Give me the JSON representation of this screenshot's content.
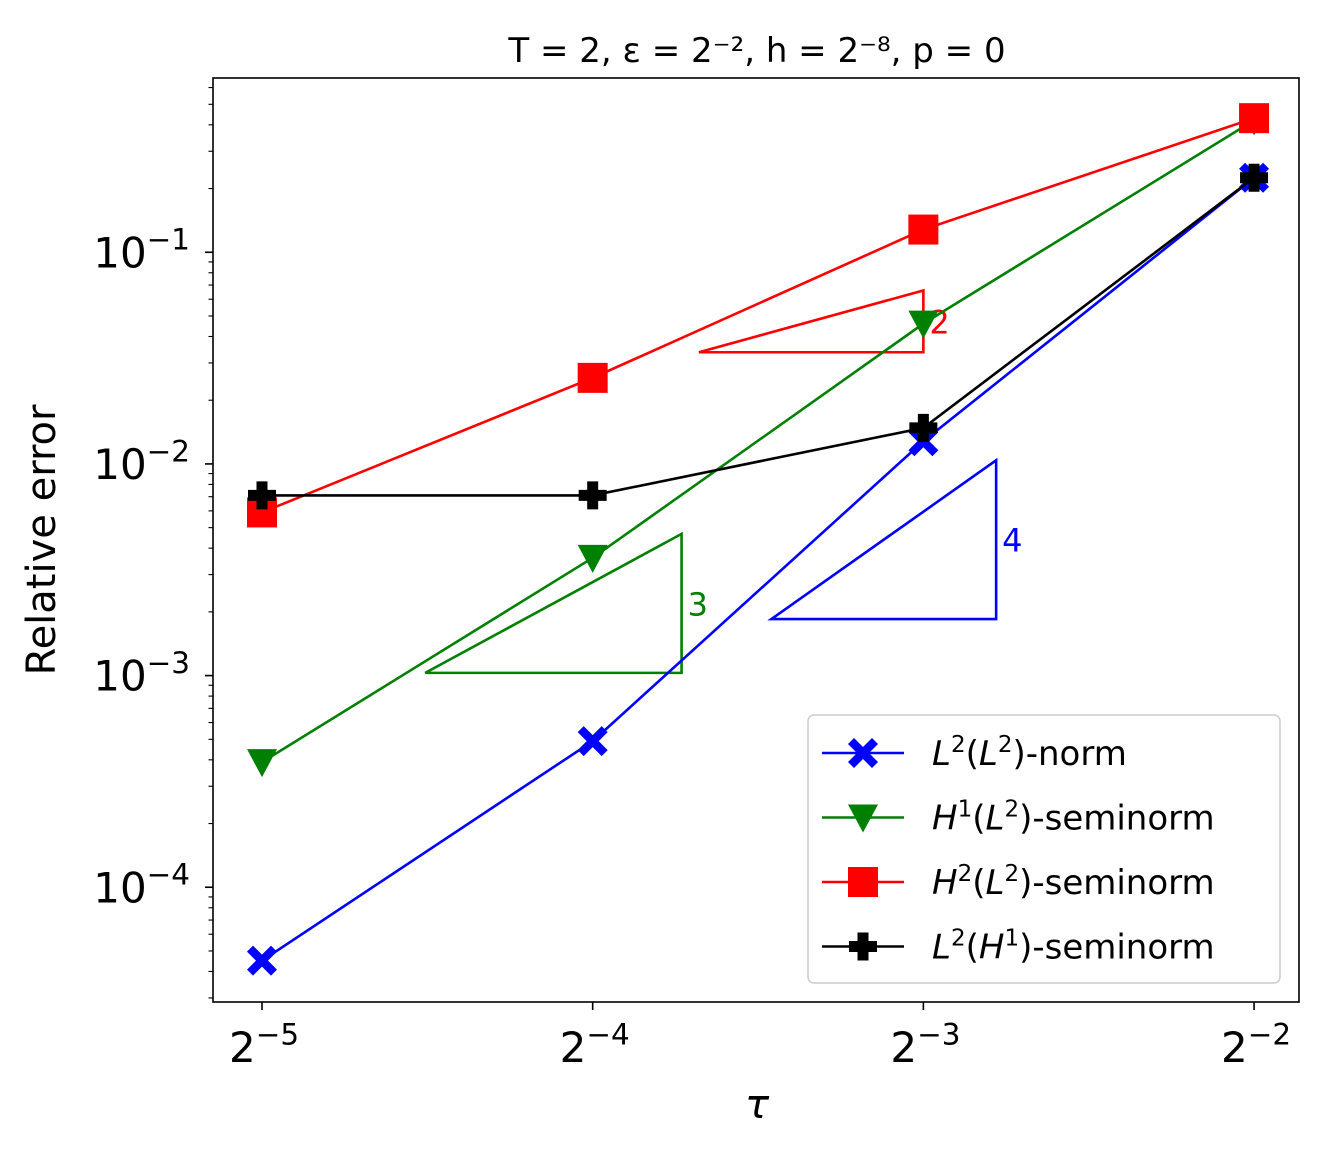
{
  "chart_data": {
    "type": "line",
    "title": "T = 2, ε = 2⁻², h = 2⁻⁸, p = 0",
    "xlabel": "τ",
    "ylabel": "Relative error",
    "x_scale": "log2",
    "y_scale": "log10",
    "x": [
      0.03125,
      0.0625,
      0.125,
      0.25
    ],
    "x_tick_base": "2",
    "x_tick_exponents": [
      "−5",
      "−4",
      "−3",
      "−2"
    ],
    "y_tick_base": "10",
    "y_tick_exponents": [
      "−4",
      "−3",
      "−2",
      "−1"
    ],
    "y_tick_values": [
      0.0001,
      0.001,
      0.01,
      0.1
    ],
    "xlim": [
      0.0282,
      0.2747
    ],
    "ylim": [
      2.87e-05,
      0.6657
    ],
    "grid": false,
    "legend_position": "lower right",
    "series": [
      {
        "name": "L²(L²)-norm",
        "legend_parts": [
          "L",
          "2",
          "(L",
          "2",
          ")-norm"
        ],
        "color": "#0000ff",
        "marker": "X",
        "values": [
          4.5e-05,
          0.00049,
          0.0128,
          0.225
        ]
      },
      {
        "name": "H¹(L²)-seminorm",
        "legend_parts": [
          "H",
          "1",
          "(L",
          "2",
          ")-seminorm"
        ],
        "color": "#008000",
        "marker": "v",
        "values": [
          0.00039,
          0.0036,
          0.046,
          0.42
        ]
      },
      {
        "name": "H²(L²)-seminorm",
        "legend_parts": [
          "H",
          "2",
          "(L",
          "2",
          ")-seminorm"
        ],
        "color": "#ff0000",
        "marker": "s",
        "values": [
          0.0059,
          0.0255,
          0.128,
          0.43
        ]
      },
      {
        "name": "L²(H¹)-seminorm",
        "legend_parts": [
          "L",
          "2",
          "(H",
          "1",
          ")-seminorm"
        ],
        "color": "#000000",
        "marker": "P",
        "values": [
          0.0071,
          0.0071,
          0.0148,
          0.225
        ]
      }
    ],
    "slope_triangles": [
      {
        "label": "2",
        "color": "#ff0000",
        "x": [
          0.0781,
          0.125
        ],
        "y": [
          0.0337,
          0.066
        ]
      },
      {
        "label": "3",
        "color": "#008000",
        "x": [
          0.044,
          0.0753
        ],
        "y": [
          0.00103,
          0.00467
        ]
      },
      {
        "label": "4",
        "color": "#0000ff",
        "x": [
          0.0909,
          0.1456
        ],
        "y": [
          0.00185,
          0.0104
        ]
      }
    ]
  }
}
